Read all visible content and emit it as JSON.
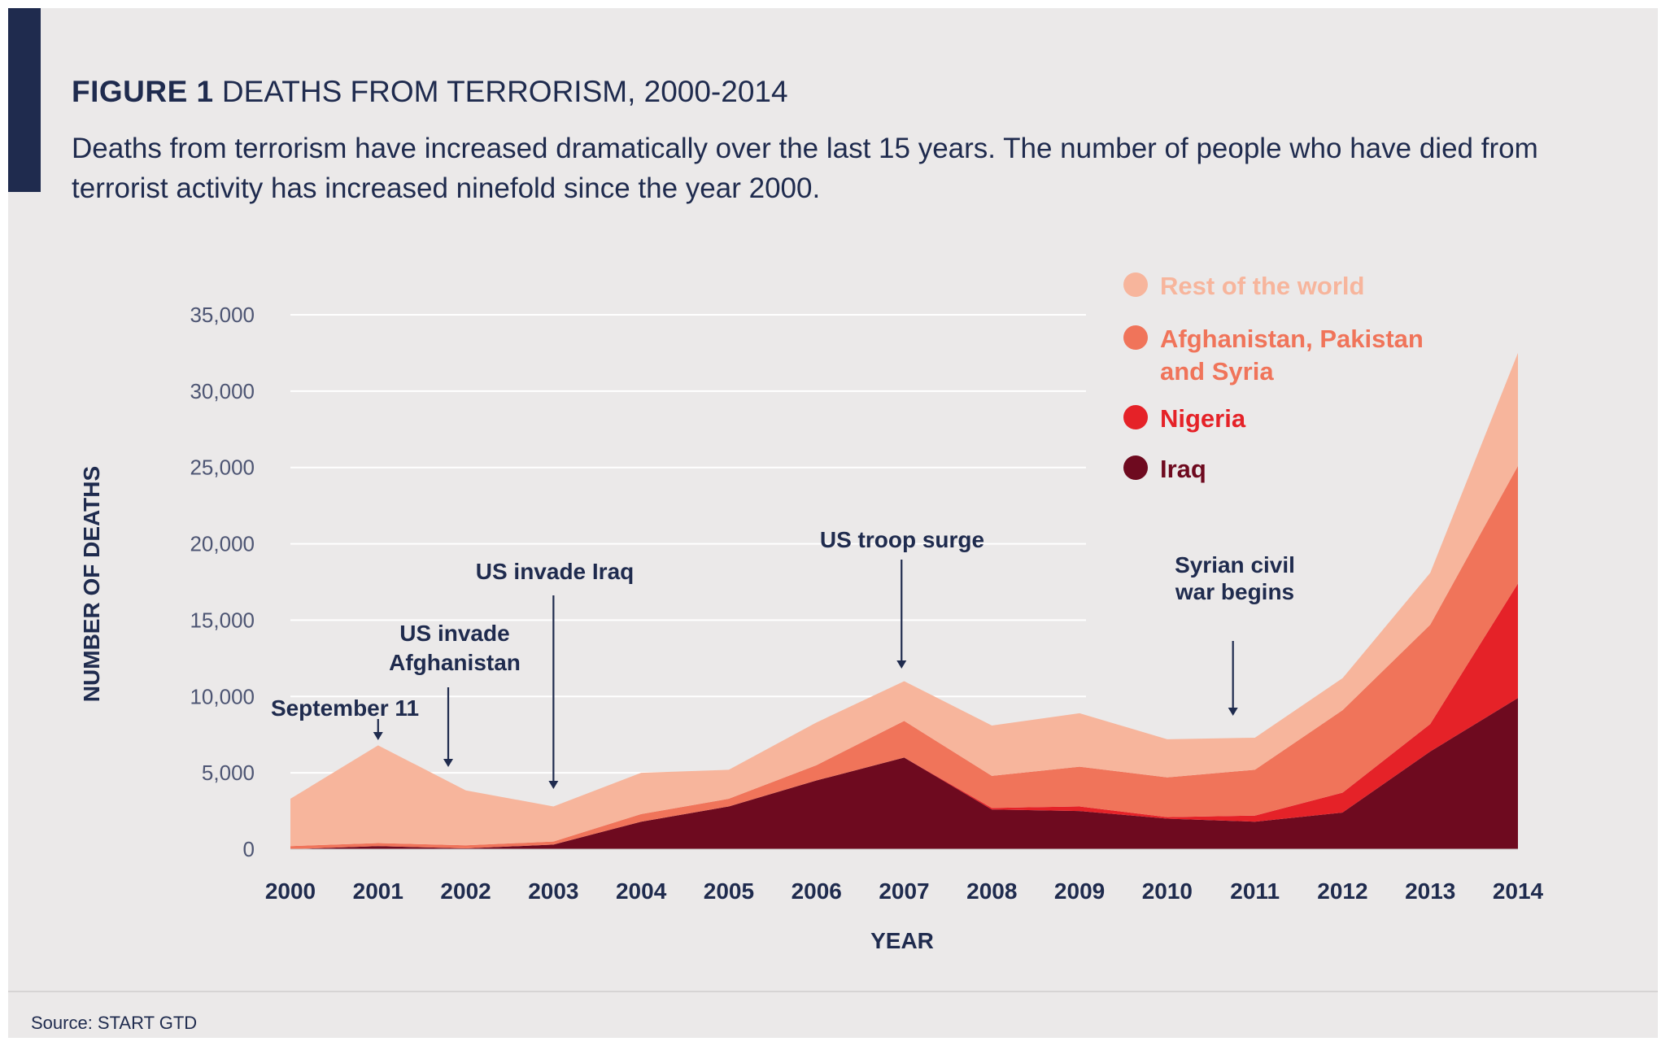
{
  "header": {
    "figure_label": "FIGURE 1",
    "title": "DEATHS FROM TERRORISM, 2000-2014",
    "subtitle": "Deaths from terrorism have increased dramatically over the last 15 years. The number of people who have died from terrorist activity has increased ninefold since the year 2000."
  },
  "chart_data": {
    "type": "area",
    "stacked": true,
    "x": [
      "2000",
      "2001",
      "2002",
      "2003",
      "2004",
      "2005",
      "2006",
      "2007",
      "2008",
      "2009",
      "2010",
      "2011",
      "2012",
      "2013",
      "2014"
    ],
    "xlabel": "YEAR",
    "ylabel": "NUMBER OF DEATHS",
    "ylim": [
      0,
      35000
    ],
    "yticks": [
      0,
      5000,
      10000,
      15000,
      20000,
      25000,
      30000,
      35000
    ],
    "ytick_labels": [
      "0",
      "5,000",
      "10,000",
      "15,000",
      "20,000",
      "25,000",
      "30,000",
      "35,000"
    ],
    "grid": true,
    "legend_position": "top-right",
    "series": [
      {
        "name": "Iraq",
        "color": "#6e0a1f",
        "values": [
          0,
          200,
          50,
          300,
          1800,
          2800,
          4500,
          6000,
          2600,
          2500,
          2000,
          1800,
          2400,
          6400,
          9900
        ]
      },
      {
        "name": "Nigeria",
        "color": "#e52228",
        "values": [
          0,
          0,
          0,
          0,
          0,
          0,
          0,
          0,
          100,
          300,
          100,
          400,
          1300,
          1800,
          7500
        ]
      },
      {
        "name": "Afghanistan, Pakistan and Syria",
        "color": "#f0745a",
        "values": [
          200,
          200,
          200,
          200,
          500,
          500,
          1000,
          2400,
          2100,
          2600,
          2600,
          3000,
          5400,
          6500,
          7700
        ]
      },
      {
        "name": "Rest of the world",
        "color": "#f7b59c",
        "values": [
          3100,
          6400,
          3600,
          2300,
          2700,
          1900,
          2800,
          2600,
          3300,
          3500,
          2500,
          2100,
          2100,
          3400,
          7400
        ]
      }
    ],
    "annotations": [
      {
        "text": "September 11",
        "x": 2001.0
      },
      {
        "text": "US invade Afghanistan",
        "x": 2001.8
      },
      {
        "text": "US invade Iraq",
        "x": 2003.0
      },
      {
        "text": "US troop surge",
        "x": 2006.97
      },
      {
        "text": "Syrian civil war begins",
        "x": 2010.75
      }
    ]
  },
  "footer": {
    "source": "Source: START GTD"
  }
}
